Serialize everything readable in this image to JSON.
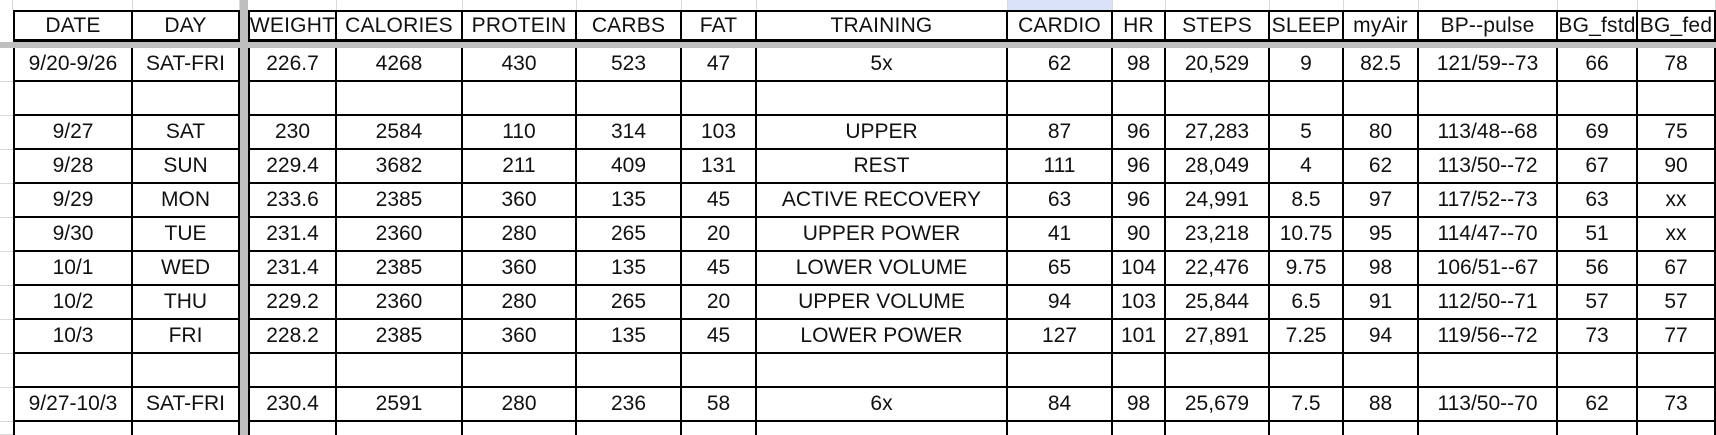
{
  "colors": {
    "divider": "#bfbfbf",
    "grid_black": "#000000",
    "grid_light": "#d9d9d9",
    "highlight": "#d9e2f6"
  },
  "table": {
    "columns": [
      {
        "key": "date",
        "label": "DATE"
      },
      {
        "key": "day",
        "label": "DAY"
      },
      {
        "key": "weight",
        "label": "WEIGHT"
      },
      {
        "key": "calories",
        "label": "CALORIES"
      },
      {
        "key": "protein",
        "label": "PROTEIN"
      },
      {
        "key": "carbs",
        "label": "CARBS"
      },
      {
        "key": "fat",
        "label": "FAT"
      },
      {
        "key": "training",
        "label": "TRAINING"
      },
      {
        "key": "cardio",
        "label": "CARDIO"
      },
      {
        "key": "hr",
        "label": "HR"
      },
      {
        "key": "steps",
        "label": "STEPS"
      },
      {
        "key": "sleep",
        "label": "SLEEP"
      },
      {
        "key": "myair",
        "label": "myAir"
      },
      {
        "key": "bp_pulse",
        "label": "BP--pulse"
      },
      {
        "key": "bg_fstd",
        "label": "BG_fstd"
      },
      {
        "key": "bg_fed",
        "label": "BG_fed"
      }
    ],
    "rows": [
      {
        "date": "9/20-9/26",
        "day": "SAT-FRI",
        "weight": "226.7",
        "calories": "4268",
        "protein": "430",
        "carbs": "523",
        "fat": "47",
        "training": "5x",
        "cardio": "62",
        "hr": "98",
        "steps": "20,529",
        "sleep": "9",
        "myair": "82.5",
        "bp_pulse": "121/59--73",
        "bg_fstd": "66",
        "bg_fed": "78"
      },
      {
        "date": "",
        "day": "",
        "weight": "",
        "calories": "",
        "protein": "",
        "carbs": "",
        "fat": "",
        "training": "",
        "cardio": "",
        "hr": "",
        "steps": "",
        "sleep": "",
        "myair": "",
        "bp_pulse": "",
        "bg_fstd": "",
        "bg_fed": ""
      },
      {
        "date": "9/27",
        "day": "SAT",
        "weight": "230",
        "calories": "2584",
        "protein": "110",
        "carbs": "314",
        "fat": "103",
        "training": "UPPER",
        "cardio": "87",
        "hr": "96",
        "steps": "27,283",
        "sleep": "5",
        "myair": "80",
        "bp_pulse": "113/48--68",
        "bg_fstd": "69",
        "bg_fed": "75"
      },
      {
        "date": "9/28",
        "day": "SUN",
        "weight": "229.4",
        "calories": "3682",
        "protein": "211",
        "carbs": "409",
        "fat": "131",
        "training": "REST",
        "cardio": "111",
        "hr": "96",
        "steps": "28,049",
        "sleep": "4",
        "myair": "62",
        "bp_pulse": "113/50--72",
        "bg_fstd": "67",
        "bg_fed": "90"
      },
      {
        "date": "9/29",
        "day": "MON",
        "weight": "233.6",
        "calories": "2385",
        "protein": "360",
        "carbs": "135",
        "fat": "45",
        "training": "ACTIVE RECOVERY",
        "cardio": "63",
        "hr": "96",
        "steps": "24,991",
        "sleep": "8.5",
        "myair": "97",
        "bp_pulse": "117/52--73",
        "bg_fstd": "63",
        "bg_fed": "xx"
      },
      {
        "date": "9/30",
        "day": "TUE",
        "weight": "231.4",
        "calories": "2360",
        "protein": "280",
        "carbs": "265",
        "fat": "20",
        "training": "UPPER POWER",
        "cardio": "41",
        "hr": "90",
        "steps": "23,218",
        "sleep": "10.75",
        "myair": "95",
        "bp_pulse": "114/47--70",
        "bg_fstd": "51",
        "bg_fed": "xx"
      },
      {
        "date": "10/1",
        "day": "WED",
        "weight": "231.4",
        "calories": "2385",
        "protein": "360",
        "carbs": "135",
        "fat": "45",
        "training": "LOWER VOLUME",
        "cardio": "65",
        "hr": "104",
        "steps": "22,476",
        "sleep": "9.75",
        "myair": "98",
        "bp_pulse": "106/51--67",
        "bg_fstd": "56",
        "bg_fed": "67"
      },
      {
        "date": "10/2",
        "day": "THU",
        "weight": "229.2",
        "calories": "2360",
        "protein": "280",
        "carbs": "265",
        "fat": "20",
        "training": "UPPER VOLUME",
        "cardio": "94",
        "hr": "103",
        "steps": "25,844",
        "sleep": "6.5",
        "myair": "91",
        "bp_pulse": "112/50--71",
        "bg_fstd": "57",
        "bg_fed": "57"
      },
      {
        "date": "10/3",
        "day": "FRI",
        "weight": "228.2",
        "calories": "2385",
        "protein": "360",
        "carbs": "135",
        "fat": "45",
        "training": "LOWER POWER",
        "cardio": "127",
        "hr": "101",
        "steps": "27,891",
        "sleep": "7.25",
        "myair": "94",
        "bp_pulse": "119/56--72",
        "bg_fstd": "73",
        "bg_fed": "77"
      },
      {
        "date": "",
        "day": "",
        "weight": "",
        "calories": "",
        "protein": "",
        "carbs": "",
        "fat": "",
        "training": "",
        "cardio": "",
        "hr": "",
        "steps": "",
        "sleep": "",
        "myair": "",
        "bp_pulse": "",
        "bg_fstd": "",
        "bg_fed": ""
      },
      {
        "date": "9/27-10/3",
        "day": "SAT-FRI",
        "weight": "230.4",
        "calories": "2591",
        "protein": "280",
        "carbs": "236",
        "fat": "58",
        "training": "6x",
        "cardio": "84",
        "hr": "98",
        "steps": "25,679",
        "sleep": "7.5",
        "myair": "88",
        "bp_pulse": "113/50--70",
        "bg_fstd": "62",
        "bg_fed": "73"
      }
    ]
  }
}
